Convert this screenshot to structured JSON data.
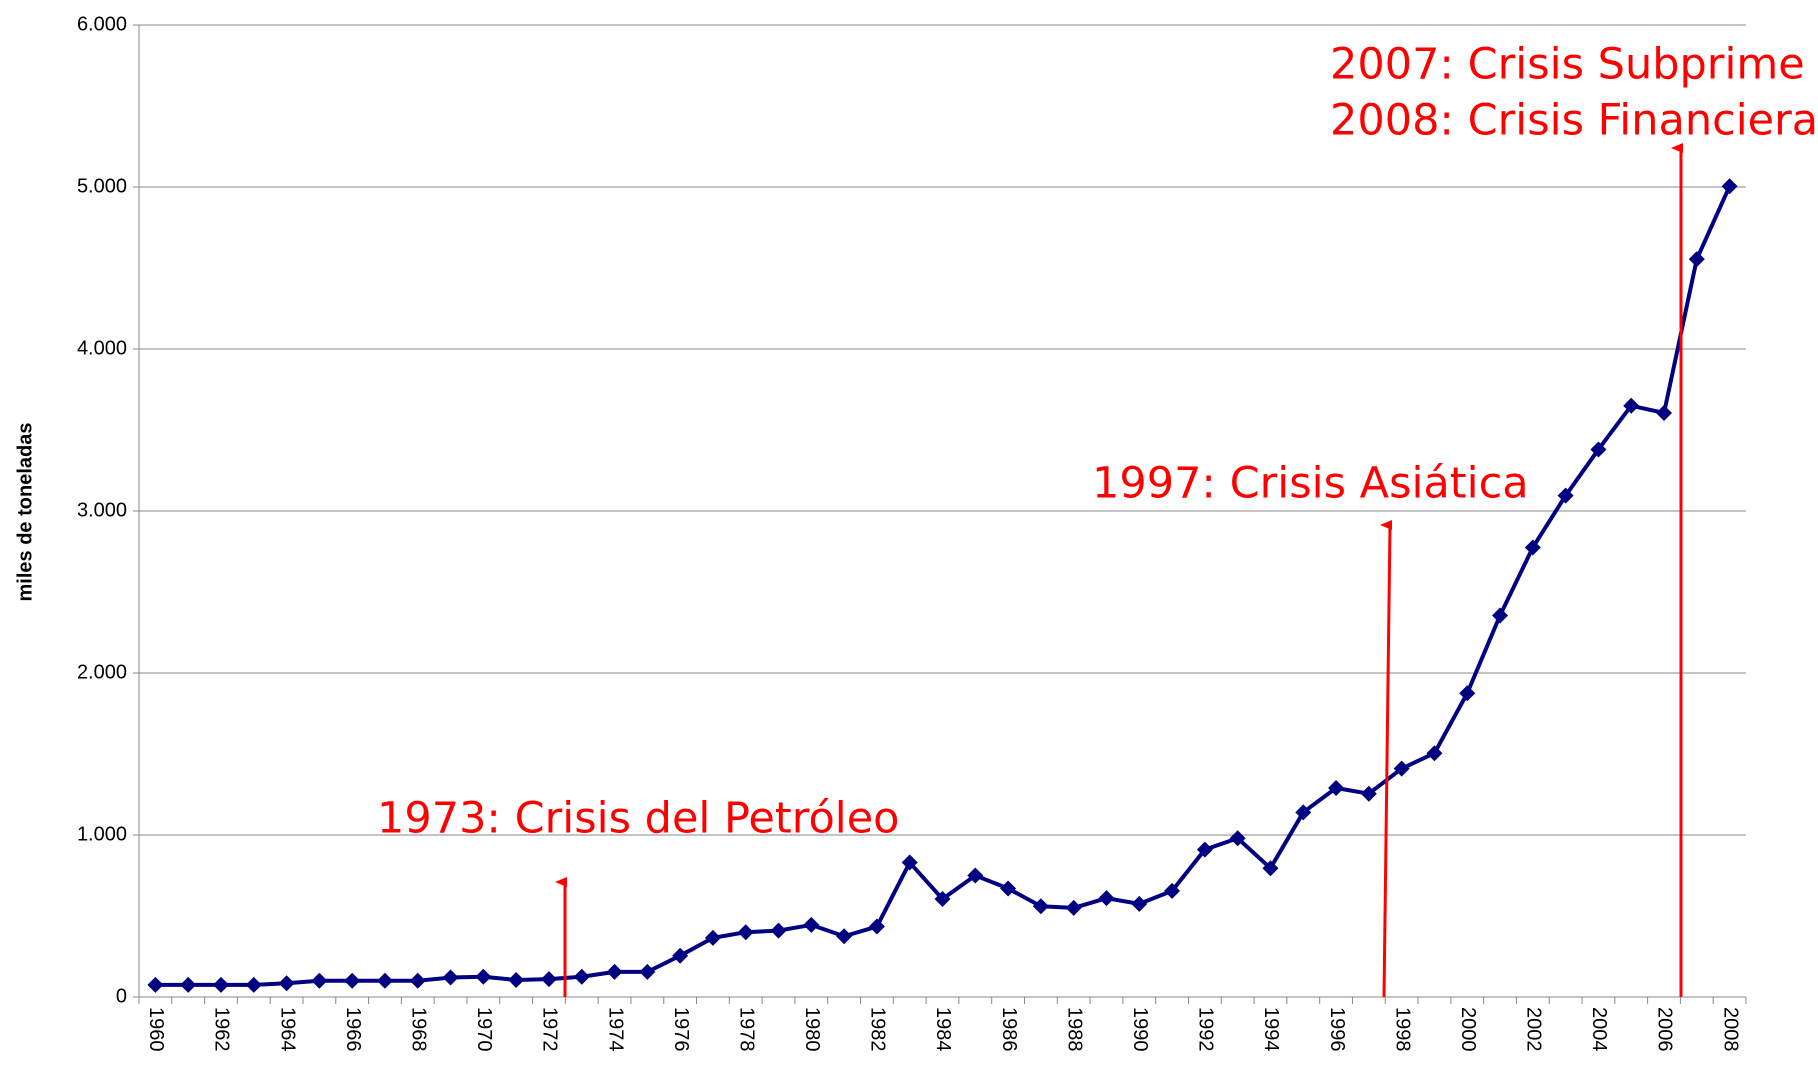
{
  "chart_data": {
    "type": "line",
    "y_label": "miles de toneladas",
    "categories": [
      "1960",
      null,
      "1962",
      null,
      "1964",
      null,
      "1966",
      null,
      "1968",
      null,
      "1970",
      null,
      "1972",
      null,
      "1974",
      null,
      "1976",
      null,
      "1978",
      null,
      "1980",
      null,
      "1982",
      null,
      "1984",
      null,
      "1986",
      null,
      "1988",
      null,
      "1990",
      null,
      "1992",
      null,
      "1994",
      null,
      "1996",
      null,
      "1998",
      null,
      "2000",
      null,
      "2002",
      null,
      "2004",
      null,
      "2006",
      null,
      "2008"
    ],
    "series": [
      {
        "color": "#000080",
        "values": [
          75,
          75,
          75,
          75,
          85,
          100,
          100,
          100,
          100,
          120,
          125,
          105,
          110,
          125,
          155,
          155,
          255,
          365,
          400,
          410,
          445,
          375,
          435,
          830,
          605,
          750,
          670,
          560,
          550,
          610,
          575,
          655,
          910,
          980,
          795,
          1140,
          1290,
          1255,
          1410,
          1505,
          1875,
          2355,
          2775,
          3095,
          3380,
          3650,
          3605,
          4555,
          5005
        ]
      }
    ],
    "ylim": [
      0,
      6000
    ],
    "yticks": [
      0,
      {
        "value": 1000,
        "label": "1.000"
      },
      {
        "value": 2000,
        "label": "2.000"
      },
      {
        "value": 3000,
        "label": "3.000"
      },
      {
        "value": 4000,
        "label": "4.000"
      },
      {
        "value": 5000,
        "label": "5.000"
      },
      {
        "value": 6000,
        "label": "6.000"
      }
    ],
    "grid": true,
    "annotations": [
      "1973: Crisis del Petróleo",
      "1997: Crisis Asiática",
      "2007: Crisis Subprime",
      "2008: Crisis Financiera"
    ]
  }
}
